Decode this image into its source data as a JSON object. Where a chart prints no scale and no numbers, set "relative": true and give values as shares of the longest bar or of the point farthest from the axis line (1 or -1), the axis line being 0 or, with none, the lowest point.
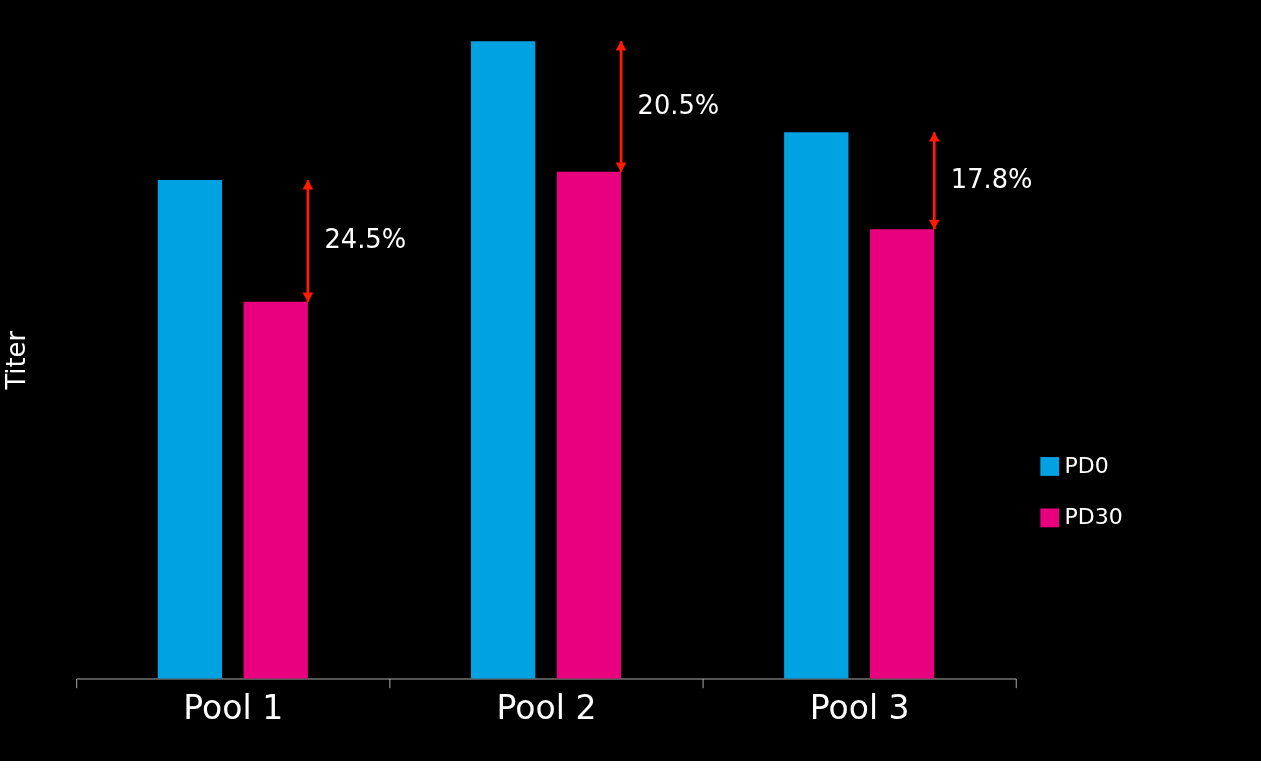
{
  "chart_data": {
    "type": "bar",
    "relative": true,
    "ylabel": "Titer",
    "categories": [
      "Pool 1",
      "Pool 2",
      "Pool 3"
    ],
    "series": [
      {
        "name": "PD0",
        "color": "#00a2e2",
        "values": [
          0.782,
          1,
          0.857
        ]
      },
      {
        "name": "PD30",
        "color": "#e8007f",
        "values": [
          0.591,
          0.795,
          0.705
        ]
      }
    ],
    "annotations": [
      "24.5%",
      "20.5%",
      "17.8%"
    ],
    "legend": "right"
  }
}
